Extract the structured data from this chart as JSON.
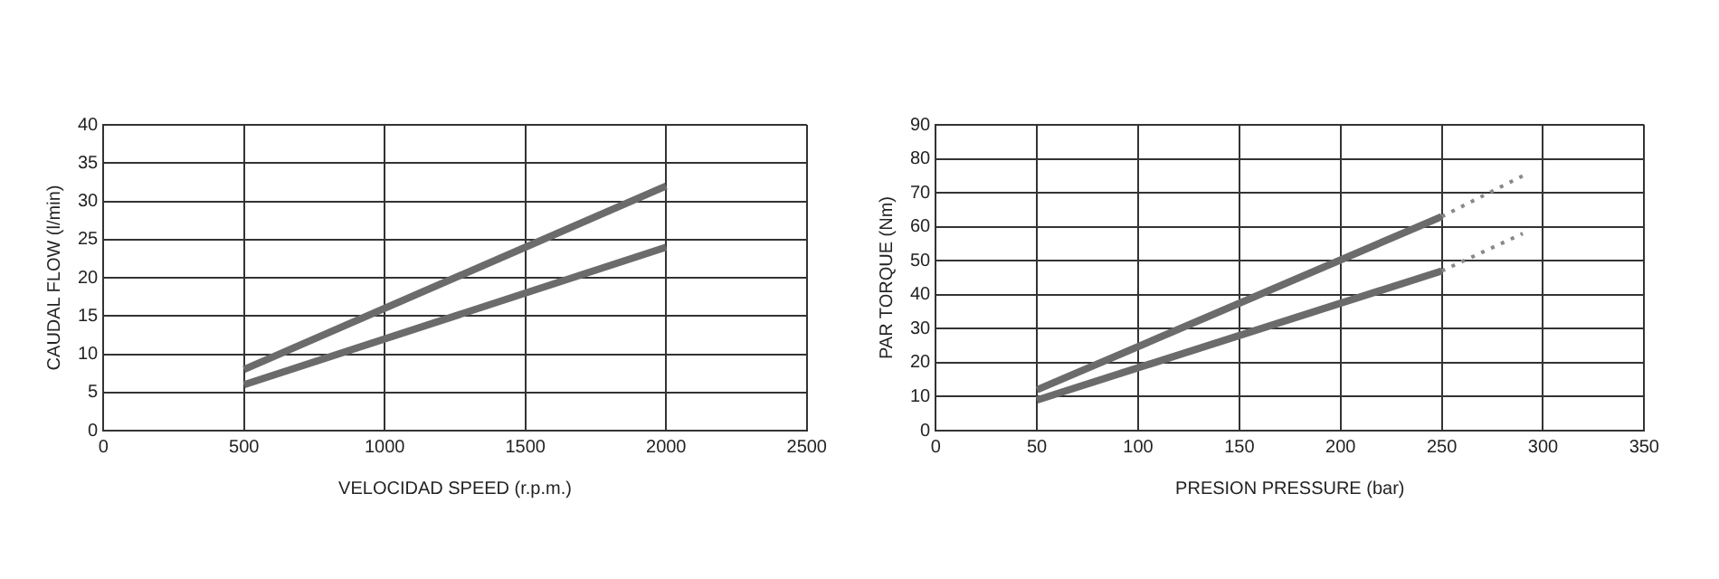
{
  "chart_data": [
    {
      "type": "line",
      "xlabel": "VELOCIDAD SPEED (r.p.m.)",
      "ylabel": "CAUDAL FLOW (l/min)",
      "xlim": [
        0,
        2500
      ],
      "xticks": [
        0,
        500,
        1000,
        1500,
        2000,
        2500
      ],
      "ylim": [
        0,
        40
      ],
      "yticks": [
        0,
        5,
        10,
        15,
        20,
        25,
        30,
        35,
        40
      ],
      "grid": true,
      "marker": "none",
      "series": [
        {
          "color": "#6b6b6b",
          "x": [
            500,
            2000
          ],
          "values": [
            8,
            32
          ]
        },
        {
          "color": "#6b6b6b",
          "x": [
            500,
            2000
          ],
          "values": [
            6,
            24
          ]
        }
      ]
    },
    {
      "type": "line",
      "xlabel": "PRESION PRESSURE (bar)",
      "ylabel": "PAR TORQUE (Nm)",
      "xlim": [
        0,
        350
      ],
      "xticks": [
        0,
        50,
        100,
        150,
        200,
        250,
        300,
        350
      ],
      "ylim": [
        0,
        90
      ],
      "yticks": [
        0,
        10,
        20,
        30,
        40,
        50,
        60,
        70,
        80,
        90
      ],
      "grid": true,
      "marker": "none",
      "series": [
        {
          "color": "#6b6b6b",
          "x": [
            50,
            250
          ],
          "values": [
            12,
            63
          ]
        },
        {
          "color": "#6b6b6b",
          "x": [
            50,
            250
          ],
          "values": [
            9,
            47
          ]
        },
        {
          "color": "#888888",
          "x": [
            250,
            290
          ],
          "values": [
            63,
            75
          ],
          "line_style": "dotted"
        },
        {
          "color": "#888888",
          "x": [
            250,
            290
          ],
          "values": [
            47,
            58
          ],
          "line_style": "dotted"
        }
      ]
    }
  ]
}
